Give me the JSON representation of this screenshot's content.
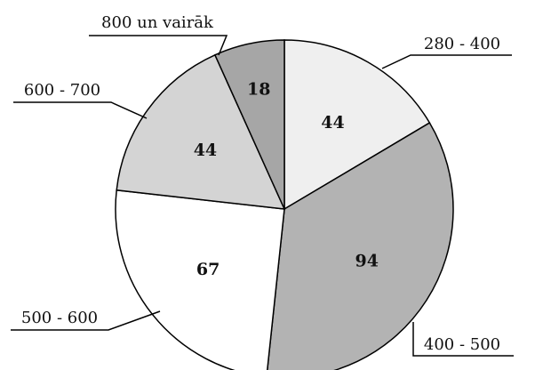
{
  "chart_data": {
    "type": "pie",
    "categories": [
      "280 - 400",
      "400 - 500",
      "500 - 600",
      "600 - 700",
      "800 un vairāk"
    ],
    "values": [
      44,
      94,
      67,
      44,
      18
    ],
    "colors": [
      "#efefef",
      "#b3b3b3",
      "#ffffff",
      "#d4d4d4",
      "#a6a6a6"
    ]
  }
}
